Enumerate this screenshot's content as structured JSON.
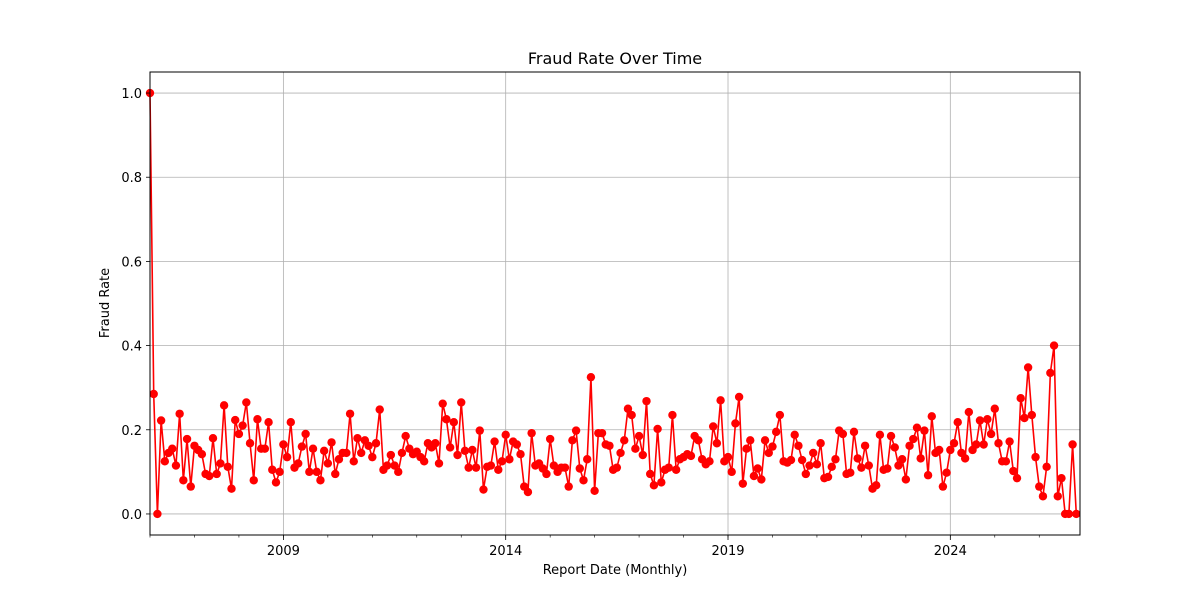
{
  "chart_data": {
    "type": "line",
    "title": "Fraud Rate Over Time",
    "xlabel": "Report Date (Monthly)",
    "ylabel": "Fraud Rate",
    "x_ticks": [
      "2009",
      "2014",
      "2019",
      "2024"
    ],
    "y_ticks": [
      "0.0",
      "0.2",
      "0.4",
      "0.6",
      "0.8",
      "1.0"
    ],
    "ylim": [
      -0.05,
      1.05
    ],
    "xlim": [
      "2006-01",
      "2026-12"
    ],
    "grid": true,
    "line_color": "#ff0000",
    "marker": "circle",
    "series": [
      {
        "start": "2006-01",
        "frequency": "monthly",
        "values": [
          1.0,
          0.285,
          0.0,
          0.222,
          0.125,
          0.145,
          0.155,
          0.115,
          0.238,
          0.08,
          0.178,
          0.065,
          0.162,
          0.152,
          0.142,
          0.095,
          0.09,
          0.18,
          0.095,
          0.12,
          0.258,
          0.112,
          0.06,
          0.223,
          0.19,
          0.21,
          0.265,
          0.168,
          0.08,
          0.225,
          0.155,
          0.155,
          0.218,
          0.105,
          0.075,
          0.1,
          0.165,
          0.135,
          0.218,
          0.11,
          0.12,
          0.16,
          0.19,
          0.1,
          0.155,
          0.1,
          0.08,
          0.15,
          0.12,
          0.17,
          0.095,
          0.13,
          0.145,
          0.145,
          0.238,
          0.125,
          0.18,
          0.145,
          0.175,
          0.162,
          0.135,
          0.168,
          0.248,
          0.105,
          0.115,
          0.14,
          0.115,
          0.1,
          0.145,
          0.185,
          0.155,
          0.142,
          0.148,
          0.135,
          0.125,
          0.168,
          0.158,
          0.168,
          0.12,
          0.262,
          0.225,
          0.158,
          0.218,
          0.14,
          0.265,
          0.15,
          0.11,
          0.152,
          0.11,
          0.198,
          0.058,
          0.112,
          0.115,
          0.172,
          0.105,
          0.125,
          0.188,
          0.13,
          0.172,
          0.165,
          0.142,
          0.065,
          0.052,
          0.192,
          0.115,
          0.12,
          0.108,
          0.095,
          0.178,
          0.115,
          0.1,
          0.11,
          0.11,
          0.065,
          0.175,
          0.198,
          0.108,
          0.08,
          0.13,
          0.325,
          0.055,
          0.192,
          0.192,
          0.165,
          0.162,
          0.105,
          0.11,
          0.145,
          0.175,
          0.25,
          0.235,
          0.155,
          0.185,
          0.14,
          0.268,
          0.095,
          0.068,
          0.202,
          0.075,
          0.105,
          0.11,
          0.235,
          0.105,
          0.13,
          0.135,
          0.142,
          0.138,
          0.185,
          0.175,
          0.13,
          0.118,
          0.125,
          0.208,
          0.168,
          0.27,
          0.125,
          0.135,
          0.1,
          0.215,
          0.278,
          0.072,
          0.155,
          0.175,
          0.09,
          0.108,
          0.082,
          0.175,
          0.145,
          0.16,
          0.195,
          0.235,
          0.125,
          0.122,
          0.128,
          0.188,
          0.162,
          0.128,
          0.095,
          0.115,
          0.145,
          0.118,
          0.168,
          0.085,
          0.088,
          0.112,
          0.13,
          0.198,
          0.19,
          0.095,
          0.098,
          0.195,
          0.132,
          0.11,
          0.162,
          0.115,
          0.06,
          0.068,
          0.188,
          0.105,
          0.108,
          0.185,
          0.158,
          0.115,
          0.13,
          0.082,
          0.162,
          0.178,
          0.205,
          0.132,
          0.198,
          0.092,
          0.232,
          0.145,
          0.152,
          0.065,
          0.098,
          0.152,
          0.168,
          0.218,
          0.145,
          0.132,
          0.242,
          0.152,
          0.165,
          0.222,
          0.165,
          0.225,
          0.19,
          0.25,
          0.168,
          0.125,
          0.125,
          0.172,
          0.102,
          0.085,
          0.275,
          0.228,
          0.348,
          0.235,
          0.135,
          0.065,
          0.042,
          0.112,
          0.335,
          0.4,
          0.042,
          0.085,
          0.0,
          0.0,
          0.165,
          0.0
        ]
      }
    ]
  }
}
